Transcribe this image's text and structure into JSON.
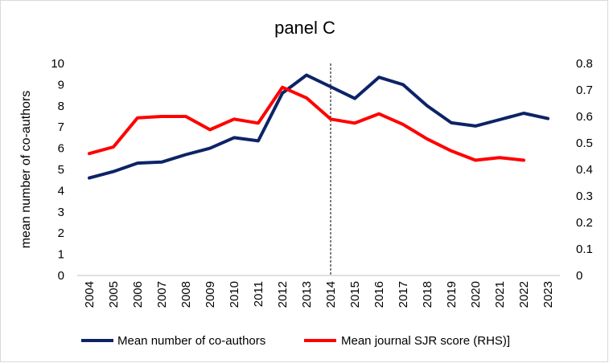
{
  "chart_data": {
    "type": "line",
    "title": "panel C",
    "ylabel": "mean number of co-authors",
    "y2label": "",
    "xlabel": "",
    "categories": [
      "2004",
      "2005",
      "2006",
      "2007",
      "2008",
      "2009",
      "2010",
      "2011",
      "2012",
      "2013",
      "2014",
      "2015",
      "2016",
      "2017",
      "2018",
      "2019",
      "2020",
      "2021",
      "2022",
      "2023"
    ],
    "ylim": [
      0,
      10
    ],
    "y_ticks": [
      "0",
      "1",
      "2",
      "3",
      "4",
      "5",
      "6",
      "7",
      "8",
      "9",
      "10"
    ],
    "y2lim": [
      0,
      0.8
    ],
    "y2_ticks": [
      "0",
      "0.1",
      "0.2",
      "0.3",
      "0.4",
      "0.5",
      "0.6",
      "0.7",
      "0.8"
    ],
    "vertical_marker_at": "2014",
    "grid": false,
    "legend_position": "bottom",
    "series": [
      {
        "name": "Mean number of co-authors",
        "axis": "left",
        "color": "#0d2366",
        "values": [
          4.6,
          4.9,
          5.3,
          5.35,
          5.7,
          6.0,
          6.5,
          6.35,
          8.6,
          9.45,
          8.9,
          8.35,
          9.35,
          9.0,
          8.0,
          7.2,
          7.05,
          7.35,
          7.65,
          7.4
        ]
      },
      {
        "name": "Mean journal SJR score (RHS)]",
        "axis": "right",
        "color": "#ff0000",
        "values": [
          0.46,
          0.485,
          0.595,
          0.6,
          0.6,
          0.55,
          0.59,
          0.575,
          0.71,
          0.67,
          0.59,
          0.575,
          0.61,
          0.57,
          0.515,
          0.47,
          0.435,
          0.445,
          0.435,
          null
        ]
      }
    ]
  }
}
